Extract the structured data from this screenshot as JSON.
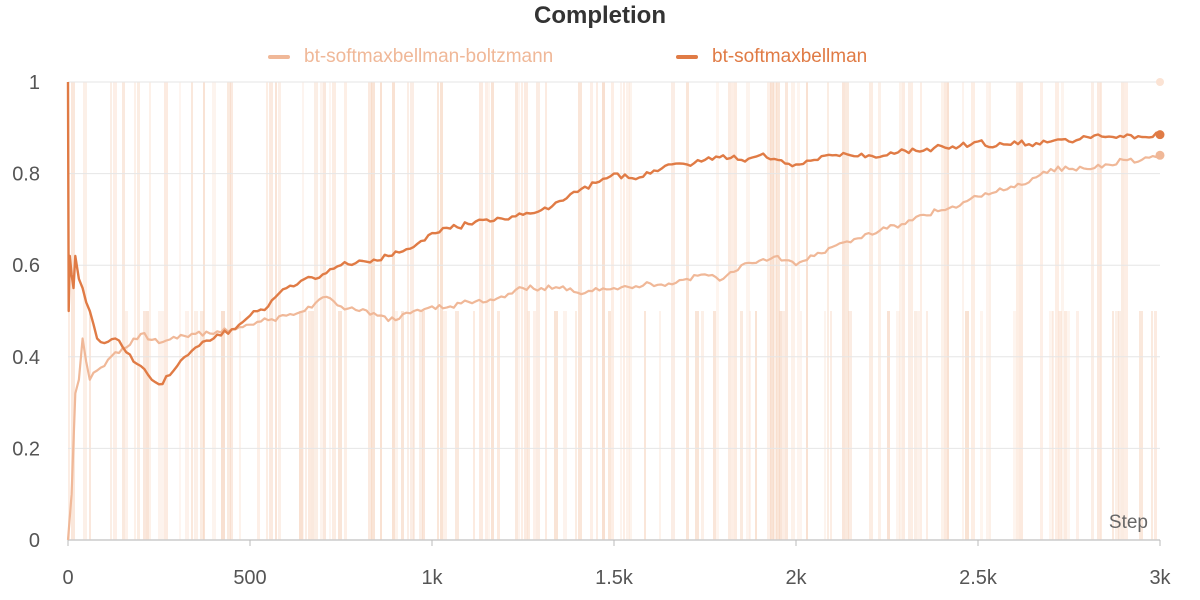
{
  "chart_data": {
    "type": "line",
    "title": "Completion",
    "xlabel": "Step",
    "ylabel": "",
    "xlim": [
      0,
      3000
    ],
    "ylim": [
      0,
      1
    ],
    "x_ticks": [
      {
        "value": 0,
        "label": "0"
      },
      {
        "value": 500,
        "label": "500"
      },
      {
        "value": 1000,
        "label": "1k"
      },
      {
        "value": 1500,
        "label": "1.5k"
      },
      {
        "value": 2000,
        "label": "2k"
      },
      {
        "value": 2500,
        "label": "2.5k"
      },
      {
        "value": 3000,
        "label": "3k"
      }
    ],
    "y_ticks": [
      {
        "value": 0,
        "label": "0"
      },
      {
        "value": 0.2,
        "label": "0.2"
      },
      {
        "value": 0.4,
        "label": "0.4"
      },
      {
        "value": 0.6,
        "label": "0.6"
      },
      {
        "value": 0.8,
        "label": "0.8"
      },
      {
        "value": 1,
        "label": "1"
      }
    ],
    "grid": true,
    "legend": "top-center",
    "series": [
      {
        "name": "bt-softmaxbellman-boltzmann",
        "color": "#f0b898",
        "raw_band_color": "#fbe3d4",
        "x": [
          0,
          10,
          20,
          30,
          40,
          60,
          80,
          100,
          130,
          160,
          200,
          250,
          300,
          350,
          400,
          450,
          500,
          550,
          600,
          650,
          700,
          750,
          800,
          850,
          900,
          950,
          1000,
          1050,
          1100,
          1150,
          1200,
          1250,
          1300,
          1350,
          1400,
          1450,
          1500,
          1550,
          1600,
          1650,
          1700,
          1750,
          1800,
          1850,
          1900,
          1950,
          2000,
          2050,
          2100,
          2150,
          2200,
          2250,
          2300,
          2350,
          2400,
          2450,
          2500,
          2550,
          2600,
          2650,
          2700,
          2750,
          2800,
          2850,
          2900,
          2950,
          3000
        ],
        "values": [
          0.0,
          0.1,
          0.32,
          0.35,
          0.44,
          0.35,
          0.37,
          0.38,
          0.41,
          0.42,
          0.45,
          0.43,
          0.44,
          0.45,
          0.45,
          0.46,
          0.47,
          0.48,
          0.49,
          0.5,
          0.53,
          0.51,
          0.5,
          0.49,
          0.48,
          0.5,
          0.51,
          0.51,
          0.52,
          0.52,
          0.53,
          0.55,
          0.55,
          0.55,
          0.54,
          0.55,
          0.55,
          0.55,
          0.56,
          0.56,
          0.57,
          0.58,
          0.57,
          0.6,
          0.61,
          0.62,
          0.6,
          0.62,
          0.64,
          0.65,
          0.67,
          0.68,
          0.69,
          0.71,
          0.72,
          0.73,
          0.75,
          0.76,
          0.77,
          0.79,
          0.81,
          0.81,
          0.81,
          0.82,
          0.83,
          0.83,
          0.84
        ]
      },
      {
        "name": "bt-softmaxbellman",
        "color": "#e07b45",
        "raw_band_color": "#f6d5c0",
        "x": [
          0,
          2,
          5,
          10,
          15,
          20,
          30,
          40,
          60,
          80,
          100,
          130,
          160,
          200,
          230,
          250,
          280,
          300,
          350,
          400,
          450,
          500,
          550,
          600,
          650,
          700,
          750,
          800,
          850,
          900,
          950,
          1000,
          1050,
          1100,
          1150,
          1200,
          1250,
          1300,
          1350,
          1400,
          1450,
          1500,
          1550,
          1600,
          1650,
          1700,
          1750,
          1800,
          1850,
          1900,
          1950,
          2000,
          2050,
          2100,
          2150,
          2200,
          2250,
          2300,
          2350,
          2400,
          2450,
          2500,
          2550,
          2600,
          2650,
          2700,
          2750,
          2800,
          2850,
          2900,
          2950,
          3000
        ],
        "values": [
          1.0,
          0.5,
          0.62,
          0.58,
          0.55,
          0.62,
          0.57,
          0.55,
          0.5,
          0.44,
          0.43,
          0.44,
          0.41,
          0.38,
          0.35,
          0.34,
          0.36,
          0.38,
          0.42,
          0.44,
          0.46,
          0.49,
          0.51,
          0.55,
          0.57,
          0.58,
          0.6,
          0.61,
          0.61,
          0.63,
          0.64,
          0.67,
          0.68,
          0.69,
          0.7,
          0.7,
          0.71,
          0.72,
          0.74,
          0.76,
          0.78,
          0.8,
          0.79,
          0.8,
          0.82,
          0.82,
          0.83,
          0.84,
          0.83,
          0.84,
          0.83,
          0.82,
          0.83,
          0.84,
          0.84,
          0.84,
          0.84,
          0.85,
          0.85,
          0.86,
          0.86,
          0.87,
          0.86,
          0.87,
          0.86,
          0.87,
          0.87,
          0.88,
          0.88,
          0.88,
          0.88,
          0.885
        ]
      }
    ]
  }
}
